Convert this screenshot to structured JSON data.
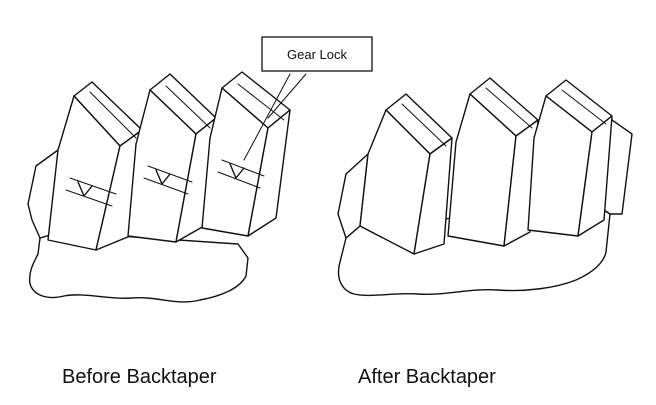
{
  "callout": {
    "label": "Gear Lock"
  },
  "captions": {
    "before": "Before Backtaper",
    "after": "After Backtaper"
  },
  "colors": {
    "line": "#111111",
    "background": "#ffffff"
  }
}
